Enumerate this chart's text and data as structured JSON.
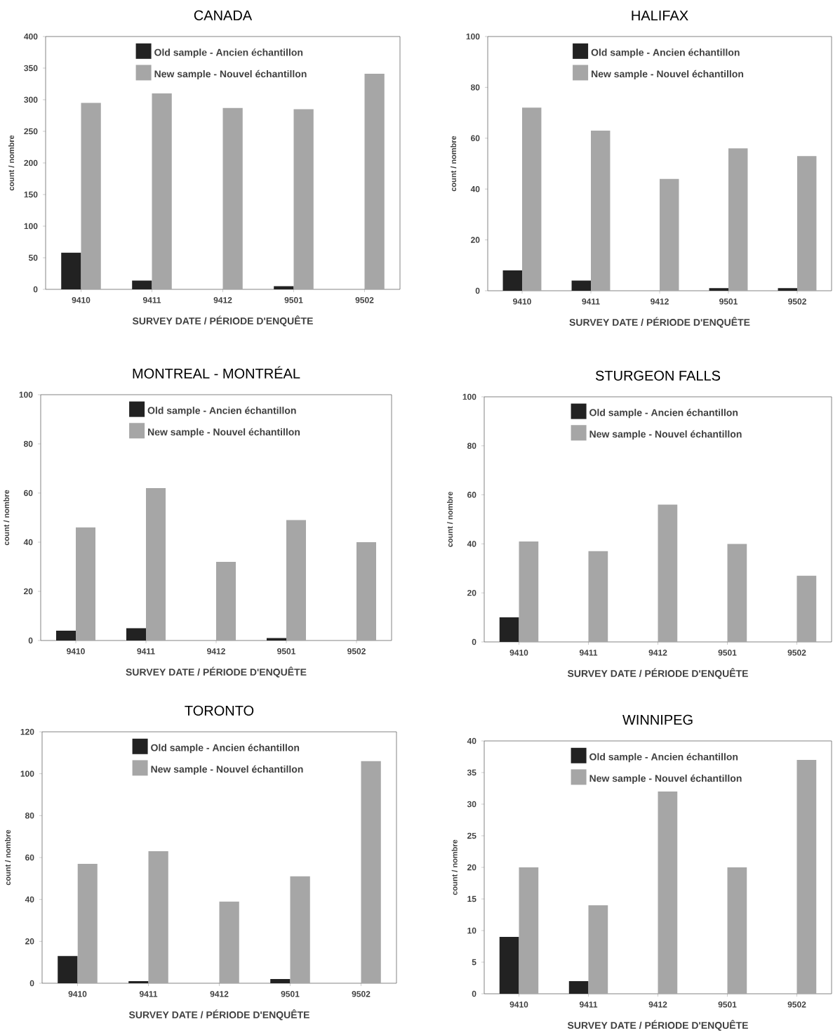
{
  "chart_data": [
    {
      "type": "bar",
      "title": "CANADA",
      "xlabel": "SURVEY DATE / PÉRIODE D'ENQUÊTE",
      "ylabel": "count / nombre",
      "categories": [
        "9410",
        "9411",
        "9412",
        "9501",
        "9502"
      ],
      "ylim": [
        0,
        400
      ],
      "yticks": [
        0,
        50,
        100,
        150,
        200,
        250,
        300,
        350,
        400
      ],
      "legend": "top",
      "series": [
        {
          "name": "Old sample - Ancien échantillon",
          "color": "#222222",
          "values": [
            58,
            14,
            0,
            5,
            0
          ]
        },
        {
          "name": "New sample - Nouvel échantillon",
          "color": "#a6a6a6",
          "values": [
            295,
            310,
            287,
            285,
            341
          ]
        }
      ]
    },
    {
      "type": "bar",
      "title": "HALIFAX",
      "xlabel": "SURVEY DATE / PÉRIODE D'ENQUÊTE",
      "ylabel": "count / nombre",
      "categories": [
        "9410",
        "9411",
        "9412",
        "9501",
        "9502"
      ],
      "ylim": [
        0,
        100
      ],
      "yticks": [
        0,
        20,
        40,
        60,
        80,
        100
      ],
      "legend": "top",
      "series": [
        {
          "name": "Old sample - Ancien échantillon",
          "color": "#222222",
          "values": [
            8,
            4,
            0,
            1,
            1
          ]
        },
        {
          "name": "New sample - Nouvel échantillon",
          "color": "#a6a6a6",
          "values": [
            72,
            63,
            44,
            56,
            53
          ]
        }
      ]
    },
    {
      "type": "bar",
      "title": "MONTREAL - MONTRÉAL",
      "xlabel": "SURVEY DATE / PÉRIODE D'ENQUÊTE",
      "ylabel": "count / nombre",
      "categories": [
        "9410",
        "9411",
        "9412",
        "9501",
        "9502"
      ],
      "ylim": [
        0,
        100
      ],
      "yticks": [
        0,
        20,
        40,
        60,
        80,
        100
      ],
      "legend": "top",
      "series": [
        {
          "name": "Old sample - Ancien échantillon",
          "color": "#222222",
          "values": [
            4,
            5,
            0,
            1,
            0
          ]
        },
        {
          "name": "New sample - Nouvel échantillon",
          "color": "#a6a6a6",
          "values": [
            46,
            62,
            32,
            49,
            40
          ]
        }
      ]
    },
    {
      "type": "bar",
      "title": "STURGEON FALLS",
      "xlabel": "SURVEY DATE / PÉRIODE D'ENQUÊTE",
      "ylabel": "count / nombre",
      "categories": [
        "9410",
        "9411",
        "9412",
        "9501",
        "9502"
      ],
      "ylim": [
        0,
        100
      ],
      "yticks": [
        0,
        20,
        40,
        60,
        80,
        100
      ],
      "legend": "top",
      "series": [
        {
          "name": "Old sample - Ancien échantillon",
          "color": "#222222",
          "values": [
            10,
            0,
            0,
            0,
            0
          ]
        },
        {
          "name": "New sample - Nouvel échantillon",
          "color": "#a6a6a6",
          "values": [
            41,
            37,
            56,
            40,
            27
          ]
        }
      ]
    },
    {
      "type": "bar",
      "title": "TORONTO",
      "xlabel": "SURVEY DATE / PÉRIODE D'ENQUÊTE",
      "ylabel": "count / nombre",
      "categories": [
        "9410",
        "9411",
        "9412",
        "9501",
        "9502"
      ],
      "ylim": [
        0,
        120
      ],
      "yticks": [
        0,
        20,
        40,
        60,
        80,
        100,
        120
      ],
      "legend": "top",
      "series": [
        {
          "name": "Old sample - Ancien échantillon",
          "color": "#222222",
          "values": [
            13,
            1,
            0,
            2,
            0
          ]
        },
        {
          "name": "New sample - Nouvel échantillon",
          "color": "#a6a6a6",
          "values": [
            57,
            63,
            39,
            51,
            106
          ]
        }
      ]
    },
    {
      "type": "bar",
      "title": "WINNIPEG",
      "xlabel": "SURVEY DATE / PÉRIODE D'ENQUÊTE",
      "ylabel": "count / nombre",
      "categories": [
        "9410",
        "9411",
        "9412",
        "9501",
        "9502"
      ],
      "ylim": [
        0,
        40
      ],
      "yticks": [
        0,
        5,
        10,
        15,
        20,
        25,
        30,
        35,
        40
      ],
      "legend": "top",
      "series": [
        {
          "name": "Old sample - Ancien échantillon",
          "color": "#222222",
          "values": [
            9,
            2,
            0,
            0,
            0
          ]
        },
        {
          "name": "New sample - Nouvel échantillon",
          "color": "#a6a6a6",
          "values": [
            20,
            14,
            32,
            20,
            37
          ]
        }
      ]
    }
  ]
}
